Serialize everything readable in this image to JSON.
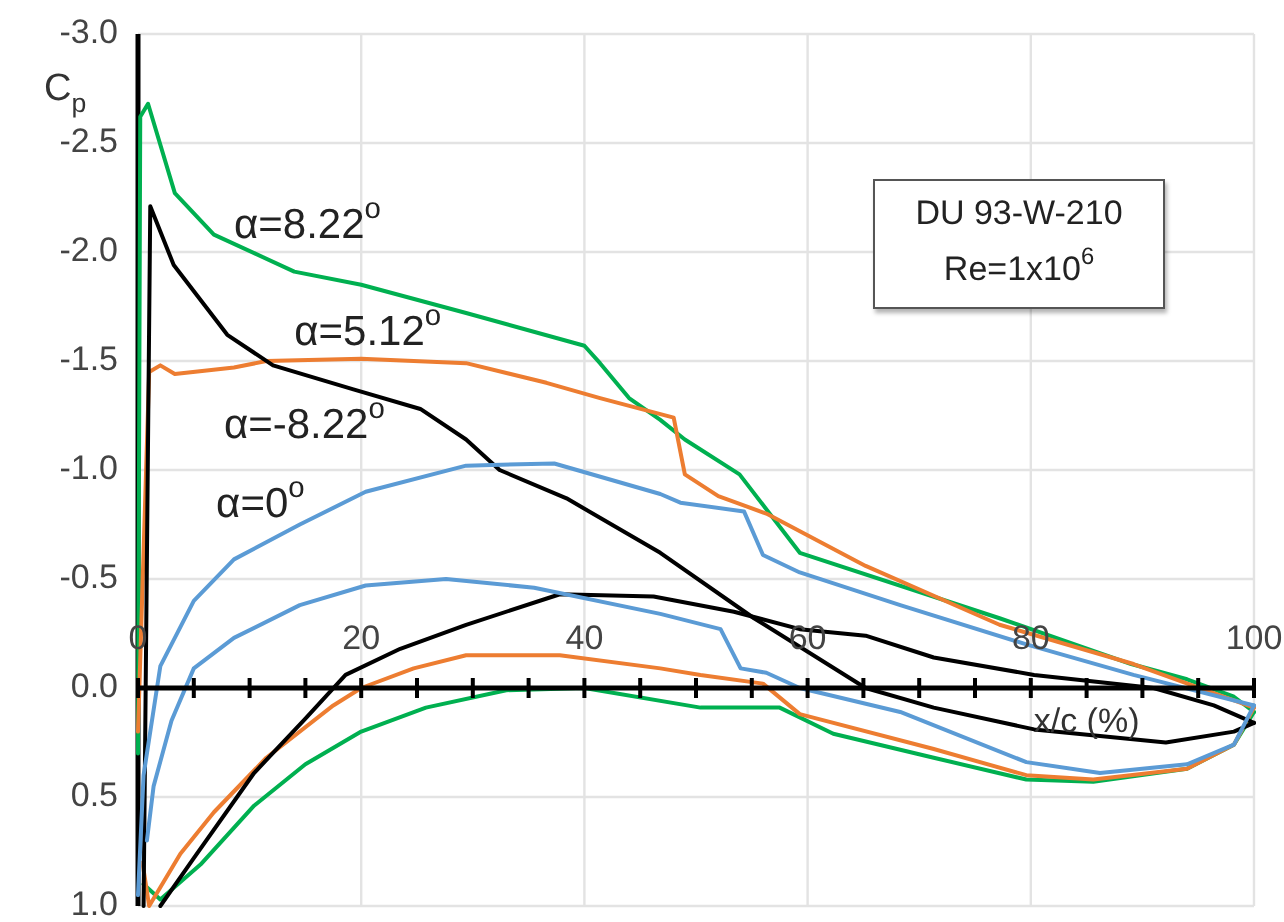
{
  "chart_data": {
    "type": "line",
    "ylabel": "C$_{p}$",
    "xlabel": "x/c (%)",
    "annotations": [
      "DU 93-W-210",
      "Re=1x10$^{6}$"
    ],
    "xlim": [
      0,
      100
    ],
    "ylim": [
      1.0,
      -3.0
    ],
    "xticks": [
      0,
      {
        "value": 5,
        "label": null
      },
      {
        "value": 10,
        "label": null
      },
      {
        "value": 15,
        "label": null
      },
      20,
      {
        "value": 25,
        "label": null
      },
      {
        "value": 30,
        "label": null
      },
      {
        "value": 35,
        "label": null
      },
      40,
      {
        "value": 45,
        "label": null
      },
      {
        "value": 50,
        "label": null
      },
      {
        "value": 55,
        "label": null
      },
      60,
      {
        "value": 65,
        "label": null
      },
      {
        "value": 70,
        "label": null
      },
      {
        "value": 75,
        "label": null
      },
      80,
      {
        "value": 85,
        "label": null
      },
      {
        "value": 90,
        "label": null
      },
      {
        "value": 95,
        "label": null
      },
      100
    ],
    "yticks": [
      {
        "value": -3,
        "label": "-3.0"
      },
      {
        "value": -2.5,
        "label": "-2.5"
      },
      {
        "value": -2,
        "label": "-2.0"
      },
      {
        "value": -1.5,
        "label": "-1.5"
      },
      {
        "value": -1,
        "label": "-1.0"
      },
      {
        "value": -0.5,
        "label": "-0.5"
      },
      {
        "value": 0,
        "label": "0.0"
      },
      {
        "value": 0.5,
        "label": "0.5"
      },
      {
        "value": 1,
        "label": "1.0"
      }
    ],
    "grid": true,
    "series": [
      {
        "name": "α=8.22$^{o}$",
        "color": "#00b050",
        "x": [
          0,
          0.2,
          0.9,
          3.3,
          6.8,
          14,
          20,
          29.4,
          40,
          41.4,
          44,
          46.8,
          49,
          53.9,
          59.3,
          77.2,
          89,
          94,
          98.2,
          100
        ],
        "values": [
          0.3,
          -2.62,
          -2.68,
          -2.27,
          -2.08,
          -1.91,
          -1.85,
          -1.72,
          -1.57,
          -1.49,
          -1.33,
          -1.23,
          -1.14,
          -0.98,
          -0.62,
          -0.32,
          -0.11,
          -0.04,
          0.04,
          0.11
        ]
      },
      {
        "color": "#00b050",
        "x": [
          0.5,
          2,
          5.6,
          10.4,
          15,
          20,
          25.8,
          33,
          40,
          50.4,
          57.5,
          62.3,
          71.3,
          79.6,
          85.6,
          94,
          98.2,
          100
        ],
        "values": [
          0.9,
          0.97,
          0.81,
          0.54,
          0.35,
          0.2,
          0.09,
          0.01,
          0,
          0.09,
          0.09,
          0.21,
          0.32,
          0.42,
          0.43,
          0.37,
          0.26,
          0.11
        ]
      },
      {
        "name": "α=5.12$^{o}$",
        "color": "#ed7d31",
        "x": [
          0,
          1,
          2,
          3.3,
          8.6,
          11.5,
          20,
          29.4,
          36.6,
          41.4,
          48,
          49,
          52,
          56.3,
          65.2,
          77.2,
          89.2,
          100
        ],
        "values": [
          0.2,
          -1.45,
          -1.48,
          -1.44,
          -1.47,
          -1.5,
          -1.51,
          -1.49,
          -1.4,
          -1.33,
          -1.24,
          -0.98,
          -0.88,
          -0.8,
          -0.56,
          -0.29,
          -0.11,
          0.09
        ]
      },
      {
        "color": "#ed7d31",
        "x": [
          0.4,
          1,
          3.8,
          6.8,
          11.5,
          17.5,
          20,
          24.7,
          29.4,
          37.8,
          46.8,
          50.4,
          56,
          59.3,
          71.3,
          79.6,
          85.6,
          94,
          98.2,
          100
        ],
        "values": [
          0.8,
          1.0,
          0.76,
          0.57,
          0.32,
          0.08,
          0,
          -0.09,
          -0.15,
          -0.15,
          -0.09,
          -0.06,
          -0.02,
          0.12,
          0.28,
          0.4,
          0.42,
          0.37,
          0.26,
          0.09
        ]
      },
      {
        "name": "α=-8.22$^{o}$",
        "color": "#000000",
        "x": [
          0.5,
          1.1,
          3.2,
          8,
          12.1,
          19.3,
          25.3,
          29.4,
          32.4,
          38.4,
          46.8,
          55.2,
          65.2,
          71.3,
          80.3,
          92.1,
          98.2,
          100
        ],
        "values": [
          1.0,
          -2.21,
          -1.94,
          -1.62,
          -1.48,
          -1.37,
          -1.28,
          -1.14,
          -1.0,
          -0.87,
          -0.62,
          -0.32,
          0,
          0.09,
          0.19,
          0.25,
          0.2,
          0.16
        ]
      },
      {
        "color": "#000000",
        "x": [
          2,
          5,
          10.4,
          15,
          18.6,
          23.5,
          29.4,
          37.8,
          46.2,
          53.4,
          59.3,
          65.2,
          71.3,
          80.3,
          91,
          96.4,
          100
        ],
        "values": [
          1.0,
          0.78,
          0.39,
          0.14,
          -0.06,
          -0.18,
          -0.29,
          -0.43,
          -0.42,
          -0.35,
          -0.27,
          -0.24,
          -0.14,
          -0.06,
          0,
          0.08,
          0.16
        ]
      },
      {
        "name": "α=0$^{o}$",
        "color": "#5b9bd5",
        "x": [
          0,
          0.5,
          2,
          5,
          8.6,
          14.5,
          20.4,
          29.4,
          37.3,
          46.8,
          48.6,
          54.3,
          56,
          59.3,
          68.3,
          79.6,
          89.2,
          100
        ],
        "values": [
          0.95,
          0.4,
          -0.1,
          -0.4,
          -0.59,
          -0.75,
          -0.9,
          -1.02,
          -1.03,
          -0.89,
          -0.85,
          -0.81,
          -0.61,
          -0.53,
          -0.38,
          -0.2,
          -0.06,
          0.08
        ]
      },
      {
        "color": "#5b9bd5",
        "x": [
          0.8,
          1.4,
          3,
          5,
          8.6,
          14.5,
          20.4,
          27.6,
          35.5,
          46.8,
          52.2,
          54,
          56.3,
          59.3,
          68.3,
          79.6,
          86.2,
          94,
          98.2,
          100
        ],
        "values": [
          0.7,
          0.45,
          0.15,
          -0.09,
          -0.23,
          -0.38,
          -0.47,
          -0.5,
          -0.46,
          -0.34,
          -0.27,
          -0.09,
          -0.07,
          0,
          0.11,
          0.34,
          0.39,
          0.35,
          0.26,
          0.08
        ]
      }
    ]
  }
}
